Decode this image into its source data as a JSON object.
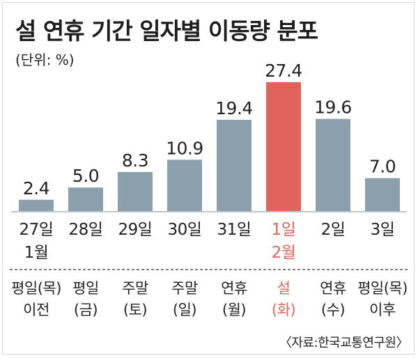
{
  "title": "설 연휴 기간 일자별 이동량 분포",
  "unit_label": "(단위: %)",
  "source": "〈자료:한국교통연구원〉",
  "colors": {
    "bar": "#8b9fad",
    "highlight_bar": "#e0625a",
    "highlight_text": "#e0625a",
    "text": "#222222",
    "axis": "#7a8b96"
  },
  "chart_data": {
    "type": "bar",
    "title": "설 연휴 기간 일자별 이동량 분포",
    "ylabel": "(단위: %)",
    "xlabel": "",
    "ylim": [
      0,
      27.4
    ],
    "grid": false,
    "legend": "none",
    "categories": [
      "27일",
      "28일",
      "29일",
      "30일",
      "31일",
      "1일",
      "2일",
      "3일"
    ],
    "month_labels": [
      "1월",
      "",
      "",
      "",
      "",
      "2월",
      "",
      ""
    ],
    "day_types": [
      [
        "평일(목)",
        "이전"
      ],
      [
        "평일",
        "(금)"
      ],
      [
        "주말",
        "(토)"
      ],
      [
        "주말",
        "(일)"
      ],
      [
        "연휴",
        "(월)"
      ],
      [
        "설",
        "(화)"
      ],
      [
        "연휴",
        "(수)"
      ],
      [
        "평일(목)",
        "이후"
      ]
    ],
    "values": [
      2.4,
      5.0,
      8.3,
      10.9,
      19.4,
      27.4,
      19.6,
      7.0
    ],
    "value_labels": [
      "2.4",
      "5.0",
      "8.3",
      "10.9",
      "19.4",
      "27.4",
      "19.6",
      "7.0"
    ],
    "highlight_index": 5
  }
}
